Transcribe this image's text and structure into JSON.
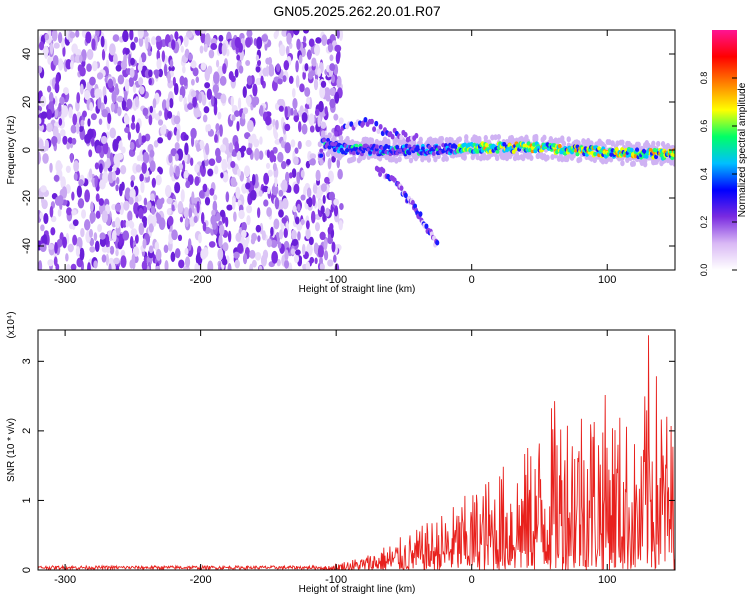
{
  "title": "GN05.2025.262.20.01.R07",
  "chart_data": [
    {
      "type": "heatmap",
      "xlabel": "Height of straight line (km)",
      "ylabel": "Frequency (Hz)",
      "xlim": [
        -320,
        150
      ],
      "ylim": [
        -50,
        50
      ],
      "xticks": [
        -300,
        -200,
        -100,
        0,
        100
      ],
      "yticks": [
        -40,
        -20,
        0,
        20,
        40
      ],
      "colorbar": {
        "label": "Normalized spectral amplitude",
        "range": [
          0.0,
          1.0
        ],
        "ticks": [
          "0.0",
          "0.2",
          "0.4",
          "0.6",
          "0.8"
        ],
        "colors": [
          "#ffffff",
          "#d9b8f5",
          "#7a2be0",
          "#0000ff",
          "#00bfff",
          "#00ff66",
          "#ffff00",
          "#ff8000",
          "#ff0000",
          "#ff1493"
        ]
      },
      "features": {
        "noise_region_x": [
          -320,
          -100
        ],
        "signal_band_center_hz": [
          {
            "x": -110,
            "y": 3
          },
          {
            "x": -90,
            "y": 0
          },
          {
            "x": -60,
            "y": 0
          },
          {
            "x": -30,
            "y": 0
          },
          {
            "x": 0,
            "y": 1
          },
          {
            "x": 50,
            "y": 1
          },
          {
            "x": 100,
            "y": -1
          },
          {
            "x": 150,
            "y": -2
          }
        ],
        "upper_branch_hz": [
          {
            "x": -100,
            "y": 8
          },
          {
            "x": -80,
            "y": 12
          },
          {
            "x": -60,
            "y": 7
          },
          {
            "x": -40,
            "y": 5
          }
        ],
        "lower_branch_hz": [
          {
            "x": -70,
            "y": -8
          },
          {
            "x": -55,
            "y": -14
          },
          {
            "x": -45,
            "y": -22
          },
          {
            "x": -35,
            "y": -30
          },
          {
            "x": -25,
            "y": -40
          }
        ]
      }
    },
    {
      "type": "line",
      "xlabel": "Height of straight line (km)",
      "ylabel": "SNR (10 * v/v)",
      "y_multiplier": "(x10⁴)",
      "xlim": [
        -320,
        150
      ],
      "ylim": [
        0,
        3.45
      ],
      "xticks": [
        -300,
        -200,
        -100,
        0,
        100
      ],
      "yticks": [
        0,
        1,
        2,
        3
      ],
      "series_color": "#e8211d",
      "envelope": {
        "x": [
          -320,
          -110,
          -80,
          -60,
          -40,
          -20,
          0,
          20,
          40,
          60,
          80,
          100,
          115,
          125,
          130,
          140,
          150
        ],
        "y": [
          0.05,
          0.05,
          0.2,
          0.4,
          0.6,
          0.85,
          1.15,
          1.5,
          1.75,
          2.45,
          2.6,
          2.55,
          2.2,
          1.7,
          3.45,
          2.6,
          2.1
        ]
      }
    }
  ]
}
